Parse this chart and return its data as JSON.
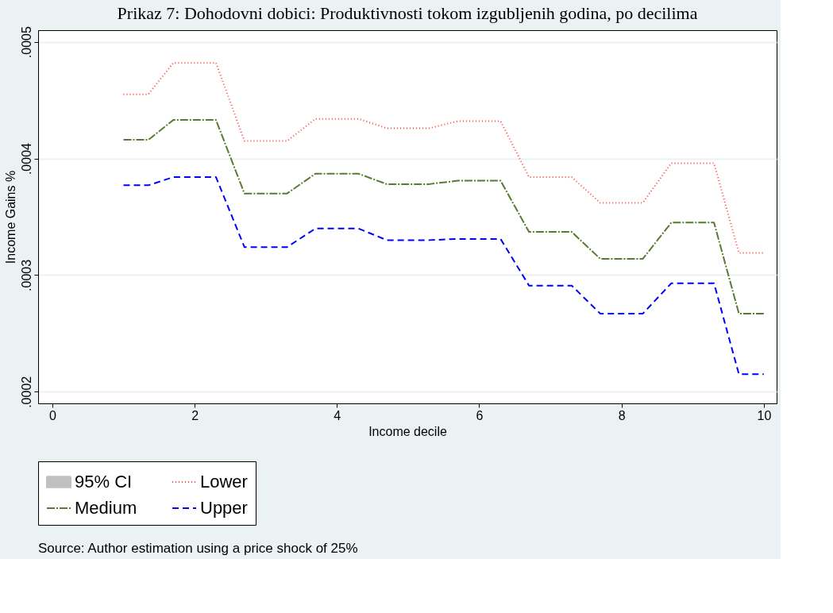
{
  "chart_data": {
    "type": "line",
    "title": "Prikaz 7: Dohodovni dobici: Produktivnosti tokom izgubljenih godina, po decilima",
    "xlabel": "Income decile",
    "ylabel": "Income Gains %",
    "x": [
      1,
      1.35,
      1.7,
      2.3,
      2.7,
      3.3,
      3.7,
      4.3,
      4.7,
      5.3,
      5.7,
      6.3,
      6.7,
      7.3,
      7.7,
      8.3,
      8.7,
      9.3,
      9.65,
      10
    ],
    "series": [
      {
        "name": "95% CI",
        "type": "area",
        "color": "#c0c0c0",
        "values": [
          null,
          null,
          null,
          null,
          null,
          null,
          null,
          null,
          null,
          null,
          null,
          null,
          null,
          null,
          null,
          null,
          null,
          null,
          null,
          null
        ]
      },
      {
        "name": "Lower",
        "color": "#ff4040",
        "line_style": "dotted",
        "values": [
          0.000455,
          0.000455,
          0.000482,
          0.000482,
          0.000415,
          0.000415,
          0.000434,
          0.000434,
          0.000426,
          0.000426,
          0.000432,
          0.000432,
          0.000384,
          0.000384,
          0.000362,
          0.000362,
          0.000396,
          0.000396,
          0.000319,
          0.000319
        ]
      },
      {
        "name": "Medium",
        "color": "#5a7a32",
        "line_style": "dashdot",
        "values": [
          0.000416,
          0.000416,
          0.000433,
          0.000433,
          0.00037,
          0.00037,
          0.000387,
          0.000387,
          0.000378,
          0.000378,
          0.000381,
          0.000381,
          0.000337,
          0.000337,
          0.000314,
          0.000314,
          0.000345,
          0.000345,
          0.000267,
          0.000267
        ]
      },
      {
        "name": "Upper",
        "color": "#0000ff",
        "line_style": "dashed",
        "values": [
          0.000377,
          0.000377,
          0.000384,
          0.000384,
          0.000324,
          0.000324,
          0.00034,
          0.00034,
          0.00033,
          0.00033,
          0.000331,
          0.000331,
          0.000291,
          0.000291,
          0.000267,
          0.000267,
          0.000293,
          0.000293,
          0.000215,
          0.000215
        ]
      }
    ],
    "xlim": [
      -0.2,
      10.18
    ],
    "xticks": [
      0,
      2,
      4,
      6,
      8,
      10
    ],
    "ylim": [
      0.00019,
      0.00051
    ],
    "yticks": [
      {
        "value": 0.0002,
        "label": ".0002"
      },
      {
        "value": 0.0003,
        "label": ".0003"
      },
      {
        "value": 0.0004,
        "label": ".0004"
      },
      {
        "value": 0.0005,
        "label": ".0005"
      }
    ],
    "grid": "y",
    "legend": "bottom",
    "annotations": [
      "Source: Author estimation using a price shock of 25%"
    ]
  }
}
